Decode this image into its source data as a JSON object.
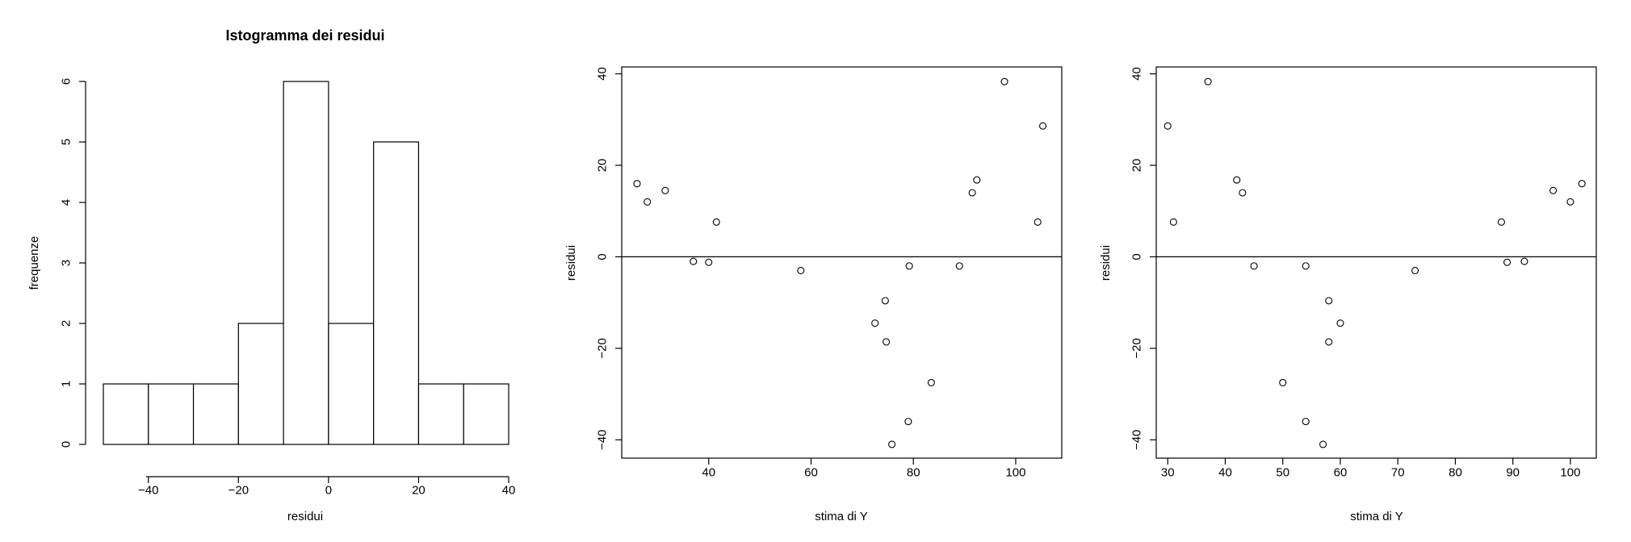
{
  "chart_data": [
    {
      "type": "bar",
      "title": "Istogramma dei residui",
      "xlabel": "residui",
      "ylabel": "frequenze",
      "bins": [
        {
          "from": -50,
          "to": -40,
          "count": 1
        },
        {
          "from": -40,
          "to": -30,
          "count": 1
        },
        {
          "from": -30,
          "to": -20,
          "count": 1
        },
        {
          "from": -20,
          "to": -10,
          "count": 2
        },
        {
          "from": -10,
          "to": 0,
          "count": 6
        },
        {
          "from": 0,
          "to": 10,
          "count": 2
        },
        {
          "from": 10,
          "to": 20,
          "count": 5
        },
        {
          "from": 20,
          "to": 30,
          "count": 1
        },
        {
          "from": 30,
          "to": 40,
          "count": 1
        }
      ],
      "xlim": [
        -50,
        40
      ],
      "ylim": [
        0,
        6
      ],
      "xticks": [
        -40,
        -20,
        0,
        20,
        40
      ],
      "yticks": [
        0,
        1,
        2,
        3,
        4,
        5,
        6
      ],
      "grid": false,
      "bar_fill": "#ffffff",
      "bar_stroke": "#000000"
    },
    {
      "type": "scatter",
      "title": "",
      "xlabel": "stima di Y",
      "ylabel": "residui",
      "points": [
        {
          "x": 26,
          "y": 16
        },
        {
          "x": 28,
          "y": 12
        },
        {
          "x": 31.5,
          "y": 14.5
        },
        {
          "x": 37,
          "y": -1
        },
        {
          "x": 40,
          "y": -1.2
        },
        {
          "x": 41.5,
          "y": 7.6
        },
        {
          "x": 58,
          "y": -3
        },
        {
          "x": 72.5,
          "y": -14.5
        },
        {
          "x": 74.5,
          "y": -9.6
        },
        {
          "x": 74.7,
          "y": -18.6
        },
        {
          "x": 75.8,
          "y": -41
        },
        {
          "x": 79,
          "y": -36
        },
        {
          "x": 79.2,
          "y": -2
        },
        {
          "x": 83.5,
          "y": -27.5
        },
        {
          "x": 89,
          "y": -2
        },
        {
          "x": 91.5,
          "y": 14
        },
        {
          "x": 92.4,
          "y": 16.8
        },
        {
          "x": 97.8,
          "y": 38.3
        },
        {
          "x": 104.3,
          "y": 7.6
        },
        {
          "x": 105.3,
          "y": 28.6
        }
      ],
      "xlim": [
        23,
        109
      ],
      "ylim": [
        -44,
        41.5
      ],
      "xticks": [
        40,
        60,
        80,
        100
      ],
      "yticks": [
        -40,
        -20,
        0,
        20,
        40
      ],
      "hline": 0,
      "grid": false
    },
    {
      "type": "scatter",
      "title": "",
      "xlabel": "stima di Y",
      "ylabel": "residui",
      "points": [
        {
          "x": 30,
          "y": 28.6
        },
        {
          "x": 31,
          "y": 7.6
        },
        {
          "x": 37,
          "y": 38.3
        },
        {
          "x": 42,
          "y": 16.8
        },
        {
          "x": 43,
          "y": 14
        },
        {
          "x": 45,
          "y": -2
        },
        {
          "x": 50,
          "y": -27.5
        },
        {
          "x": 54,
          "y": -2
        },
        {
          "x": 54,
          "y": -36
        },
        {
          "x": 57,
          "y": -41
        },
        {
          "x": 58,
          "y": -9.6
        },
        {
          "x": 58,
          "y": -18.6
        },
        {
          "x": 60,
          "y": -14.5
        },
        {
          "x": 73,
          "y": -3
        },
        {
          "x": 88,
          "y": 7.6
        },
        {
          "x": 89,
          "y": -1.2
        },
        {
          "x": 92,
          "y": -1
        },
        {
          "x": 97,
          "y": 14.5
        },
        {
          "x": 100,
          "y": 12
        },
        {
          "x": 102,
          "y": 16
        }
      ],
      "xlim": [
        28,
        104.5
      ],
      "ylim": [
        -44,
        41.5
      ],
      "xticks": [
        30,
        40,
        50,
        60,
        70,
        80,
        90,
        100
      ],
      "yticks": [
        -40,
        -20,
        0,
        20,
        40
      ],
      "hline": 0,
      "grid": false
    }
  ]
}
